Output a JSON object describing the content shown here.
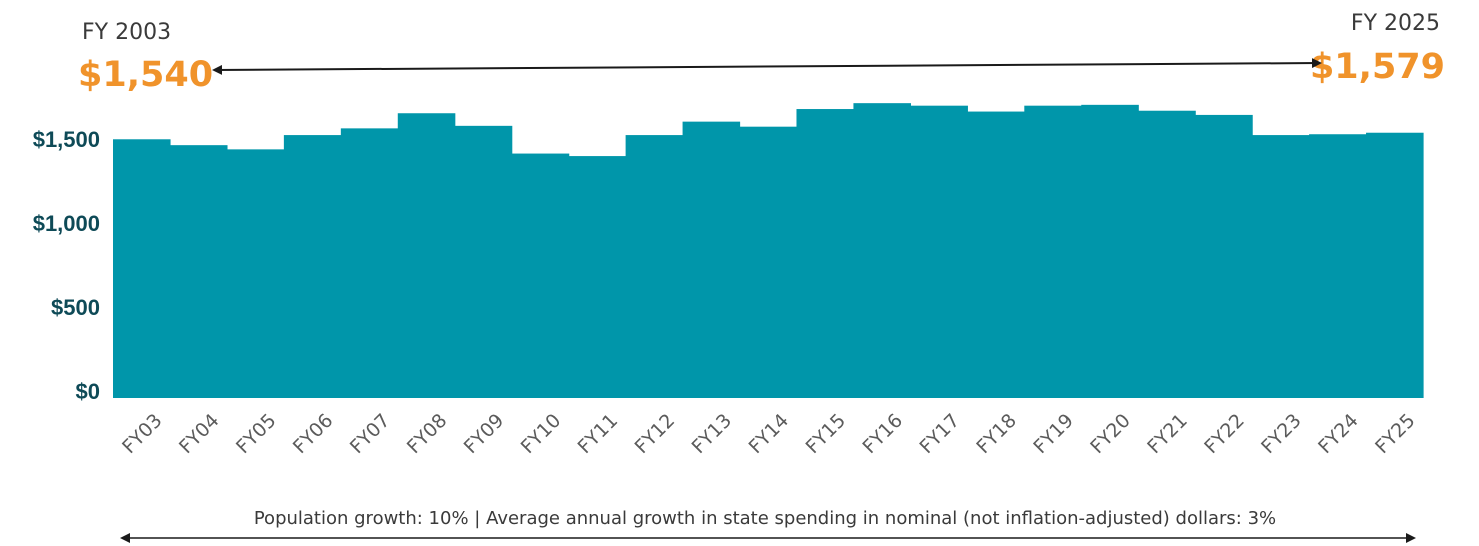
{
  "chart_data": {
    "type": "area",
    "categories": [
      "FY03",
      "FY04",
      "FY05",
      "FY06",
      "FY07",
      "FY08",
      "FY09",
      "FY10",
      "FY11",
      "FY12",
      "FY13",
      "FY14",
      "FY15",
      "FY16",
      "FY17",
      "FY18",
      "FY19",
      "FY20",
      "FY21",
      "FY22",
      "FY23",
      "FY24",
      "FY25"
    ],
    "values": [
      1540,
      1505,
      1480,
      1565,
      1605,
      1695,
      1620,
      1455,
      1440,
      1565,
      1645,
      1615,
      1720,
      1755,
      1740,
      1705,
      1740,
      1745,
      1710,
      1685,
      1565,
      1570,
      1579
    ],
    "y_ticks": [
      {
        "value": 0,
        "label": "$0"
      },
      {
        "value": 500,
        "label": "$500"
      },
      {
        "value": 1000,
        "label": "$1,000"
      },
      {
        "value": 1500,
        "label": "$1,500"
      }
    ],
    "ylim": [
      0,
      1800
    ],
    "color": "#0096aa",
    "start_annotation": {
      "label": "FY 2003",
      "value": "$1,540"
    },
    "end_annotation": {
      "label": "FY 2025",
      "value": "$1,579"
    },
    "footnote": "Population growth: 10% | Average annual growth in state spending in nominal (not inflation-adjusted) dollars: 3%",
    "accent_color": "#f0932b",
    "grid": false
  }
}
